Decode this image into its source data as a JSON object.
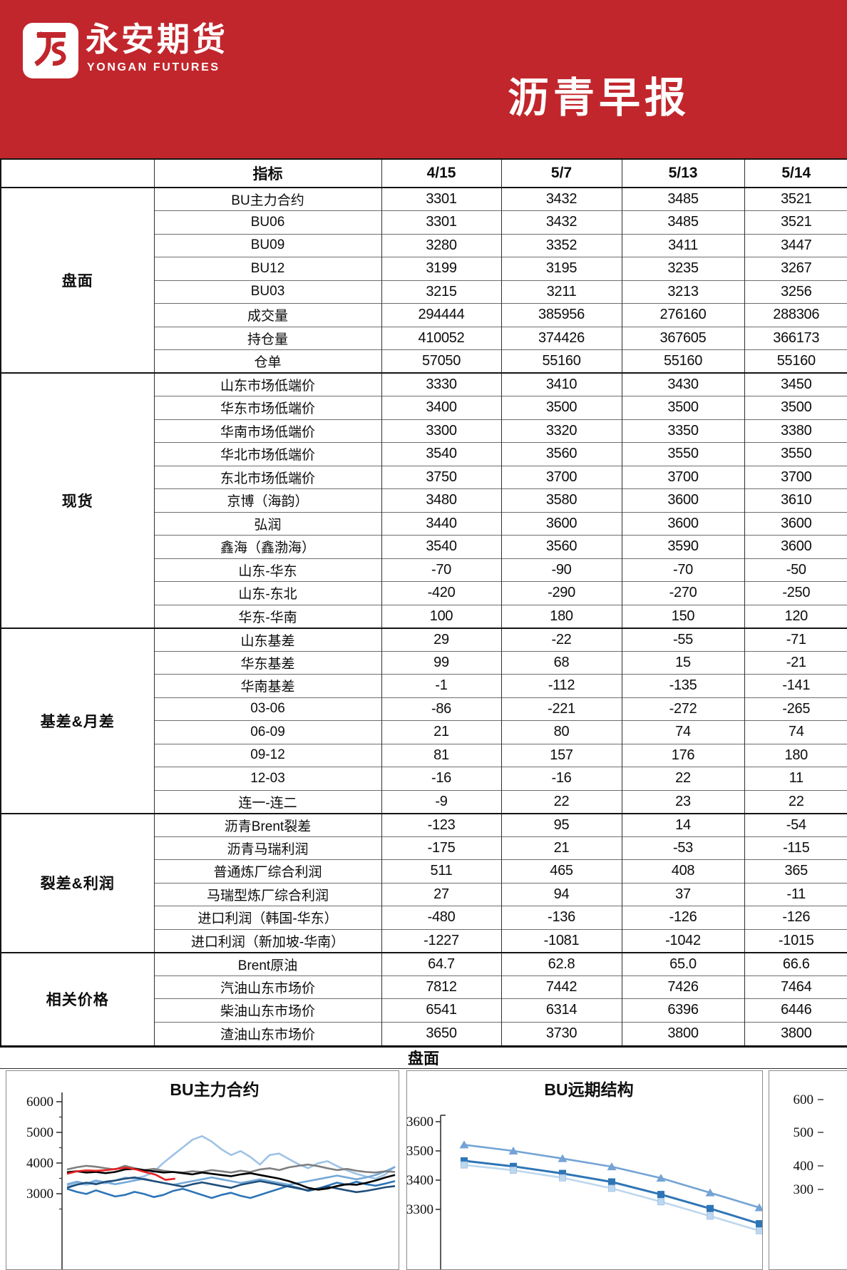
{
  "header": {
    "logo_zh": "永安期货",
    "logo_en": "YONGAN FUTURES",
    "title": "沥青早报",
    "banner_color": "#C1262C"
  },
  "table": {
    "columns": [
      "指标",
      "4/15",
      "5/7",
      "5/13",
      "5/14"
    ],
    "groups": [
      {
        "name": "盘面",
        "rows": [
          {
            "label": "BU主力合约",
            "values": [
              "3301",
              "3432",
              "3485",
              "3521"
            ]
          },
          {
            "label": "BU06",
            "values": [
              "3301",
              "3432",
              "3485",
              "3521"
            ]
          },
          {
            "label": "BU09",
            "values": [
              "3280",
              "3352",
              "3411",
              "3447"
            ]
          },
          {
            "label": "BU12",
            "values": [
              "3199",
              "3195",
              "3235",
              "3267"
            ]
          },
          {
            "label": "BU03",
            "values": [
              "3215",
              "3211",
              "3213",
              "3256"
            ]
          },
          {
            "label": "成交量",
            "values": [
              "294444",
              "385956",
              "276160",
              "288306"
            ]
          },
          {
            "label": "持仓量",
            "values": [
              "410052",
              "374426",
              "367605",
              "366173"
            ]
          },
          {
            "label": "仓单",
            "values": [
              "57050",
              "55160",
              "55160",
              "55160"
            ]
          }
        ]
      },
      {
        "name": "现货",
        "rows": [
          {
            "label": "山东市场低端价",
            "values": [
              "3330",
              "3410",
              "3430",
              "3450"
            ]
          },
          {
            "label": "华东市场低端价",
            "values": [
              "3400",
              "3500",
              "3500",
              "3500"
            ]
          },
          {
            "label": "华南市场低端价",
            "values": [
              "3300",
              "3320",
              "3350",
              "3380"
            ]
          },
          {
            "label": "华北市场低端价",
            "values": [
              "3540",
              "3560",
              "3550",
              "3550"
            ]
          },
          {
            "label": "东北市场低端价",
            "values": [
              "3750",
              "3700",
              "3700",
              "3700"
            ]
          },
          {
            "label": "京博（海韵）",
            "values": [
              "3480",
              "3580",
              "3600",
              "3610"
            ]
          },
          {
            "label": "弘润",
            "values": [
              "3440",
              "3600",
              "3600",
              "3600"
            ]
          },
          {
            "label": "鑫海（鑫渤海）",
            "values": [
              "3540",
              "3560",
              "3590",
              "3600"
            ]
          },
          {
            "label": "山东-华东",
            "values": [
              "-70",
              "-90",
              "-70",
              "-50"
            ]
          },
          {
            "label": "山东-东北",
            "values": [
              "-420",
              "-290",
              "-270",
              "-250"
            ]
          },
          {
            "label": "华东-华南",
            "values": [
              "100",
              "180",
              "150",
              "120"
            ]
          }
        ]
      },
      {
        "name": "基差&月差",
        "rows": [
          {
            "label": "山东基差",
            "values": [
              "29",
              "-22",
              "-55",
              "-71"
            ]
          },
          {
            "label": "华东基差",
            "values": [
              "99",
              "68",
              "15",
              "-21"
            ]
          },
          {
            "label": "华南基差",
            "values": [
              "-1",
              "-112",
              "-135",
              "-141"
            ]
          },
          {
            "label": "03-06",
            "values": [
              "-86",
              "-221",
              "-272",
              "-265"
            ]
          },
          {
            "label": "06-09",
            "values": [
              "21",
              "80",
              "74",
              "74"
            ]
          },
          {
            "label": "09-12",
            "values": [
              "81",
              "157",
              "176",
              "180"
            ]
          },
          {
            "label": "12-03",
            "values": [
              "-16",
              "-16",
              "22",
              "11"
            ]
          },
          {
            "label": "连一-连二",
            "values": [
              "-9",
              "22",
              "23",
              "22"
            ]
          }
        ]
      },
      {
        "name": "裂差&利润",
        "rows": [
          {
            "label": "沥青Brent裂差",
            "values": [
              "-123",
              "95",
              "14",
              "-54"
            ]
          },
          {
            "label": "沥青马瑞利润",
            "values": [
              "-175",
              "21",
              "-53",
              "-115"
            ]
          },
          {
            "label": "普通炼厂综合利润",
            "values": [
              "511",
              "465",
              "408",
              "365"
            ]
          },
          {
            "label": "马瑞型炼厂综合利润",
            "values": [
              "27",
              "94",
              "37",
              "-11"
            ]
          },
          {
            "label": "进口利润（韩国-华东）",
            "values": [
              "-480",
              "-136",
              "-126",
              "-126"
            ]
          },
          {
            "label": "进口利润（新加坡-华南）",
            "values": [
              "-1227",
              "-1081",
              "-1042",
              "-1015"
            ]
          }
        ]
      },
      {
        "name": "相关价格",
        "rows": [
          {
            "label": "Brent原油",
            "values": [
              "64.7",
              "62.8",
              "65.0",
              "66.6"
            ]
          },
          {
            "label": "汽油山东市场价",
            "values": [
              "7812",
              "7442",
              "7426",
              "7464"
            ]
          },
          {
            "label": "柴油山东市场价",
            "values": [
              "6541",
              "6314",
              "6396",
              "6446"
            ]
          },
          {
            "label": "渣油山东市场价",
            "values": [
              "3650",
              "3730",
              "3800",
              "3800"
            ]
          }
        ]
      }
    ]
  },
  "section_band": {
    "label": "盘面"
  },
  "chart_data": [
    {
      "type": "line",
      "title": "BU主力合约",
      "yticks": [
        6000,
        5000,
        4000,
        3000
      ],
      "ylim": [
        2750,
        6200
      ],
      "grid": false,
      "legend": "none (multi-year overlay, x-axis cut off at image bottom)",
      "series": [
        {
          "name": "light-blue-year",
          "color": "#9DC3E6",
          "span": 1,
          "values": [
            3260,
            3330,
            3290,
            3370,
            3340,
            3430,
            3530,
            3490,
            3570,
            3710,
            4010,
            4260,
            4510,
            4760,
            4880,
            4700,
            4450,
            4260,
            4390,
            4200,
            3950,
            4260,
            4310,
            4130,
            3960,
            3830,
            3990,
            4060,
            3900,
            3760,
            3650,
            3560,
            3490,
            3630,
            3890
          ]
        },
        {
          "name": "steel-blue-year",
          "color": "#74A9D8",
          "span": 1,
          "values": [
            3310,
            3390,
            3330,
            3430,
            3370,
            3310,
            3370,
            3430,
            3490,
            3410,
            3350,
            3290,
            3350,
            3410,
            3470,
            3530,
            3470,
            3410,
            3350,
            3410,
            3470,
            3410,
            3350,
            3290,
            3350,
            3410,
            3470,
            3530,
            3590,
            3530,
            3470,
            3530,
            3610,
            3730,
            3870
          ]
        },
        {
          "name": "mid-blue-year",
          "color": "#2E75B6",
          "span": 1,
          "values": [
            3160,
            3060,
            2990,
            3110,
            3010,
            2910,
            2960,
            3060,
            2990,
            2890,
            2960,
            3090,
            3160,
            3060,
            2960,
            2860,
            2960,
            3030,
            2930,
            2860,
            2960,
            3060,
            3160,
            3260,
            3190,
            3090,
            3160,
            3260,
            3360,
            3290,
            3390,
            3310,
            3260,
            3330,
            3410
          ]
        },
        {
          "name": "navy-year",
          "color": "#1F4E79",
          "span": 1,
          "values": [
            3190,
            3290,
            3360,
            3310,
            3390,
            3430,
            3490,
            3530,
            3470,
            3410,
            3350,
            3290,
            3230,
            3310,
            3370,
            3310,
            3250,
            3190,
            3290,
            3350,
            3410,
            3350,
            3290,
            3230,
            3170,
            3110,
            3170,
            3230,
            3170,
            3110,
            3050,
            3090,
            3150,
            3210,
            3250
          ]
        },
        {
          "name": "gray-year",
          "color": "#7F7F7F",
          "span": 1,
          "values": [
            3790,
            3860,
            3910,
            3880,
            3830,
            3790,
            3910,
            3830,
            3770,
            3810,
            3750,
            3710,
            3690,
            3730,
            3710,
            3770,
            3730,
            3690,
            3750,
            3710,
            3790,
            3830,
            3770,
            3860,
            3910,
            3950,
            3900,
            3830,
            3770,
            3810,
            3750,
            3710,
            3690,
            3730,
            3710
          ]
        },
        {
          "name": "black-year",
          "color": "#000000",
          "span": 1,
          "values": [
            3700,
            3730,
            3690,
            3710,
            3670,
            3710,
            3790,
            3810,
            3770,
            3730,
            3690,
            3710,
            3670,
            3630,
            3690,
            3650,
            3610,
            3570,
            3630,
            3670,
            3610,
            3550,
            3490,
            3410,
            3310,
            3190,
            3130,
            3170,
            3250,
            3310,
            3290,
            3350,
            3430,
            3530,
            3610
          ]
        },
        {
          "name": "red-current-year",
          "color": "#E82020",
          "span": 0.33,
          "values": [
            3650,
            3730,
            3760,
            3750,
            3770,
            3810,
            3850,
            3790,
            3700,
            3620,
            3450,
            3490
          ]
        }
      ]
    },
    {
      "type": "line",
      "title": "BU远期结构",
      "yticks": [
        3600,
        3500,
        3400,
        3300
      ],
      "ylim": [
        3200,
        3620
      ],
      "grid": false,
      "x_count": 7,
      "series": [
        {
          "name": "curve-triangle",
          "color": "#74A3D6",
          "marker": "triangle",
          "values": [
            3521,
            3500,
            3474,
            3446,
            3407,
            3357,
            3306
          ]
        },
        {
          "name": "curve-square",
          "color": "#2E75B6",
          "marker": "square",
          "values": [
            3466,
            3447,
            3423,
            3394,
            3351,
            3303,
            3251
          ]
        },
        {
          "name": "curve-light-square",
          "color": "#BDD7EE",
          "marker": "square-light",
          "values": [
            3452,
            3434,
            3408,
            3372,
            3326,
            3277,
            3227
          ]
        }
      ]
    },
    {
      "type": "line",
      "title": "",
      "yticks": [
        "600",
        "500",
        "400",
        "300"
      ],
      "note_visible_pixels": "panel cut off at right image edge; only y-axis labels visible"
    }
  ]
}
